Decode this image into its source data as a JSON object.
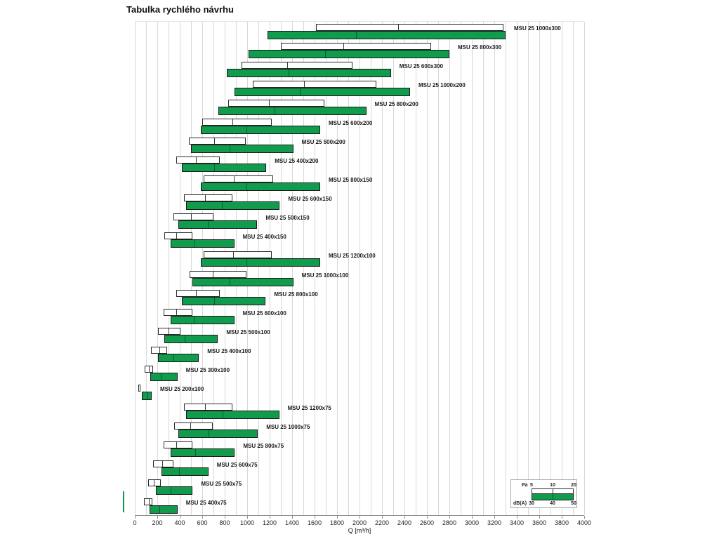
{
  "title": "Tabulka rychlého návrhu",
  "chart_data": {
    "type": "bar",
    "title": "Tabulka rychlého návrhu",
    "xlabel": "Q [m³/h]",
    "x_axis": {
      "min": 0,
      "max": 4000,
      "grid_step": 100,
      "tick_step": 200,
      "tick_labels": [
        "0",
        "200",
        "400",
        "600",
        "800",
        "1000",
        "1200",
        "1400",
        "1600",
        "1800",
        "2000",
        "2200",
        "2400",
        "2600",
        "2800",
        "3000",
        "3200",
        "3400",
        "3600",
        "3800",
        "4000"
      ]
    },
    "series_meta": {
      "pa": {
        "label": "Pa",
        "ticks": [
          "5",
          "10",
          "20"
        ],
        "fill": "#ffffff"
      },
      "dba": {
        "label": "dB(A)",
        "ticks": [
          "30",
          "40",
          "50"
        ],
        "fill": "#119b4c"
      }
    },
    "rows": [
      {
        "label": "MSU 25 1000x300",
        "pa_q": [
          1610,
          2340,
          3280
        ],
        "dba_q": [
          1180,
          1960,
          3300
        ]
      },
      {
        "label": "MSU 25 800x300",
        "pa_q": [
          1300,
          1850,
          2640
        ],
        "dba_q": [
          1010,
          1690,
          2800
        ]
      },
      {
        "label": "MSU 25 600x300",
        "pa_q": [
          950,
          1350,
          1940
        ],
        "dba_q": [
          820,
          1360,
          2280
        ]
      },
      {
        "label": "MSU 25 1000x200",
        "pa_q": [
          1050,
          1500,
          2150
        ],
        "dba_q": [
          890,
          1460,
          2450
        ]
      },
      {
        "label": "MSU 25 800x200",
        "pa_q": [
          830,
          1185,
          1690
        ],
        "dba_q": [
          745,
          1240,
          2060
        ]
      },
      {
        "label": "MSU 25 600x200",
        "pa_q": [
          600,
          860,
          1220
        ],
        "dba_q": [
          590,
          990,
          1650
        ]
      },
      {
        "label": "MSU 25 500x200",
        "pa_q": [
          480,
          700,
          990
        ],
        "dba_q": [
          500,
          840,
          1410
        ]
      },
      {
        "label": "MSU 25 400x200",
        "pa_q": [
          370,
          535,
          755
        ],
        "dba_q": [
          420,
          700,
          1170
        ]
      },
      {
        "label": "MSU 25 800x150",
        "pa_q": [
          610,
          875,
          1230
        ],
        "dba_q": [
          590,
          985,
          1650
        ]
      },
      {
        "label": "MSU 25 600x150",
        "pa_q": [
          435,
          620,
          870
        ],
        "dba_q": [
          455,
          770,
          1290
        ]
      },
      {
        "label": "MSU 25 500x150",
        "pa_q": [
          345,
          495,
          700
        ],
        "dba_q": [
          385,
          645,
          1090
        ]
      },
      {
        "label": "MSU 25 400x150",
        "pa_q": [
          260,
          365,
          515
        ],
        "dba_q": [
          320,
          525,
          885
        ]
      },
      {
        "label": "MSU 25 1200x100",
        "pa_q": [
          610,
          870,
          1220
        ],
        "dba_q": [
          590,
          985,
          1650
        ]
      },
      {
        "label": "MSU 25 1000x100",
        "pa_q": [
          490,
          690,
          995
        ],
        "dba_q": [
          510,
          840,
          1410
        ]
      },
      {
        "label": "MSU 25 800x100",
        "pa_q": [
          370,
          535,
          755
        ],
        "dba_q": [
          420,
          700,
          1165
        ]
      },
      {
        "label": "MSU 25 600x100",
        "pa_q": [
          255,
          365,
          515
        ],
        "dba_q": [
          320,
          520,
          885
        ]
      },
      {
        "label": "MSU 25 500x100",
        "pa_q": [
          205,
          295,
          405
        ],
        "dba_q": [
          260,
          440,
          740
        ]
      },
      {
        "label": "MSU 25 400x100",
        "pa_q": [
          145,
          210,
          285
        ],
        "dba_q": [
          205,
          340,
          570
        ]
      },
      {
        "label": "MSU 25 300x100",
        "pa_q": [
          85,
          120,
          165
        ],
        "dba_q": [
          135,
          225,
          380
        ]
      },
      {
        "label": "MSU 25 200x100",
        "pa_q": [
          30,
          40,
          50
        ],
        "dba_q": [
          60,
          105,
          150
        ]
      },
      {
        "label": "MSU 25 1200x75",
        "pa_q": [
          440,
          620,
          870
        ],
        "dba_q": [
          455,
          775,
          1285
        ]
      },
      {
        "label": "MSU 25 1000x75",
        "pa_q": [
          350,
          490,
          695
        ],
        "dba_q": [
          385,
          650,
          1095
        ]
      },
      {
        "label": "MSU 25 800x75",
        "pa_q": [
          255,
          365,
          515
        ],
        "dba_q": [
          320,
          530,
          890
        ]
      },
      {
        "label": "MSU 25 600x75",
        "pa_q": [
          160,
          235,
          345
        ],
        "dba_q": [
          235,
          390,
          655
        ]
      },
      {
        "label": "MSU 25 500x75",
        "pa_q": [
          120,
          165,
          230
        ],
        "dba_q": [
          185,
          310,
          515
        ]
      },
      {
        "label": "MSU 25 400x75",
        "pa_q": [
          80,
          120,
          155
        ],
        "dba_q": [
          130,
          215,
          380
        ]
      }
    ],
    "legend": {
      "pa_label": "Pa",
      "pa_ticks": [
        "5",
        "10",
        "20"
      ],
      "dba_label": "dB(A)",
      "dba_ticks": [
        "30",
        "40",
        "50"
      ]
    },
    "layout": {
      "legend_position": "bottom-right",
      "grid": true,
      "accent_color": "#119b4c"
    }
  }
}
